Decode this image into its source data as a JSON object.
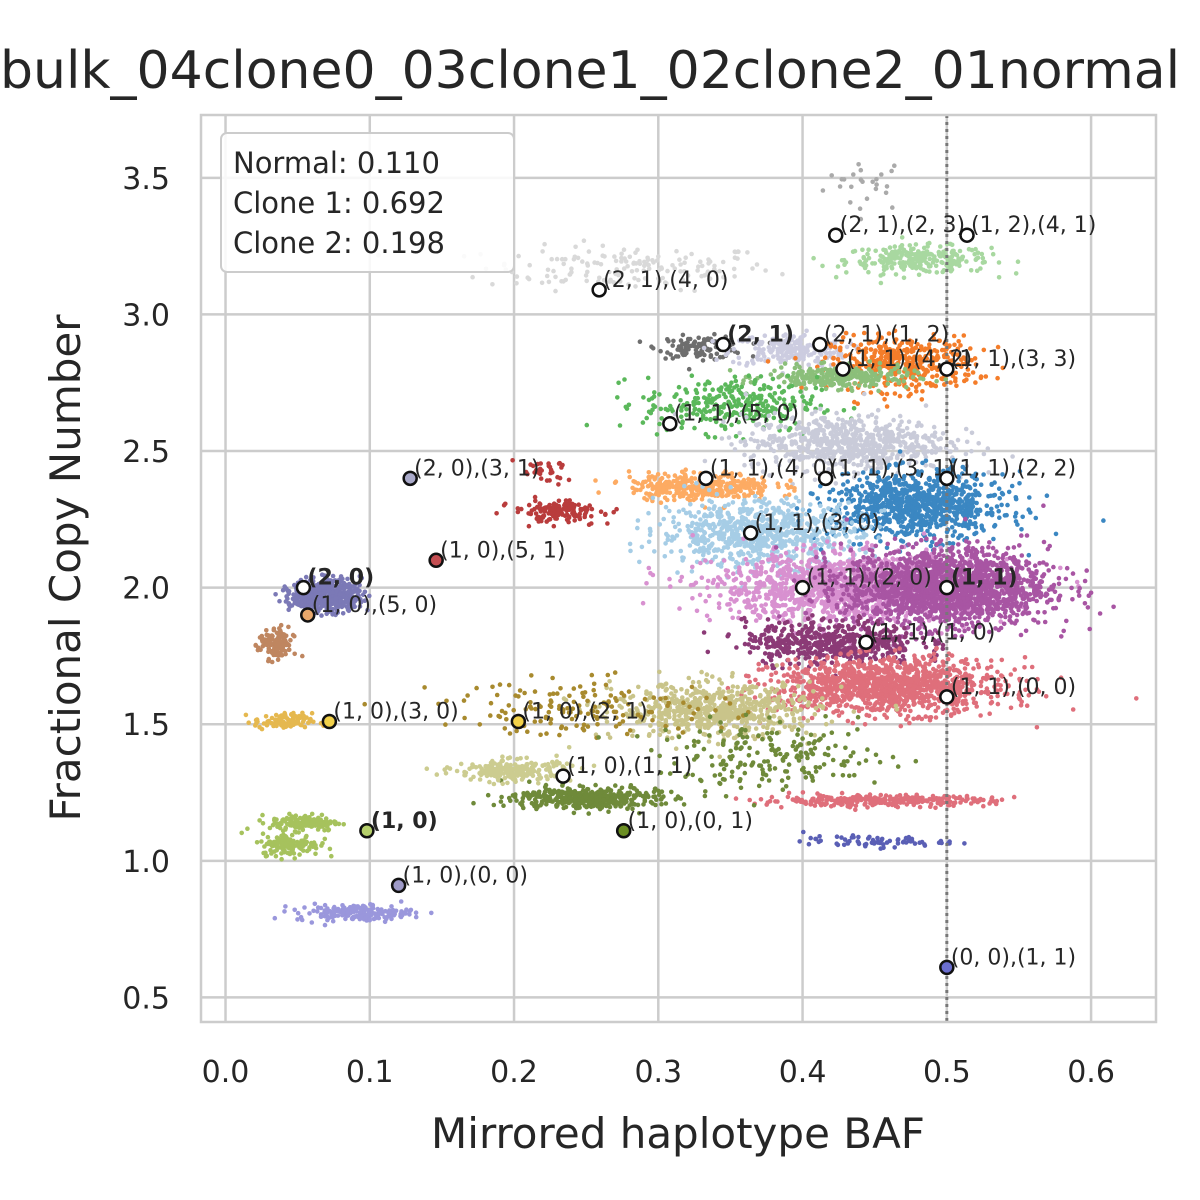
{
  "chart_data": {
    "type": "scatter",
    "title": "bulk_04clone0_03clone1_02clone2_01normal",
    "xlabel": "Mirrored haplotype BAF",
    "ylabel": "Fractional Copy Number",
    "xlim": [
      -0.017,
      0.645
    ],
    "ylim": [
      0.41,
      3.73
    ],
    "x_ticks": [
      "0.0",
      "0.1",
      "0.2",
      "0.3",
      "0.4",
      "0.5",
      "0.6"
    ],
    "y_ticks": [
      "0.5",
      "1.0",
      "1.5",
      "2.0",
      "2.5",
      "3.0",
      "3.5"
    ],
    "grid": true,
    "reference_line": {
      "x": 0.5,
      "style": "dotted",
      "color": "#777777"
    },
    "annotation_box": {
      "position": "top-left",
      "lines": [
        "Normal: 0.110",
        "Clone 1: 0.692",
        "Clone 2: 0.198"
      ]
    },
    "clusters": [
      {
        "color": "#aaaaaa",
        "cx": 0.445,
        "cy": 3.48,
        "sx": 0.015,
        "sy": 0.05,
        "n": 25
      },
      {
        "color": "#d9d9d9",
        "cx": 0.28,
        "cy": 3.17,
        "sx": 0.05,
        "sy": 0.04,
        "n": 160
      },
      {
        "color": "#a8d8a0",
        "cx": 0.48,
        "cy": 3.2,
        "sx": 0.025,
        "sy": 0.025,
        "n": 260
      },
      {
        "color": "#6e6e6e",
        "cx": 0.33,
        "cy": 2.88,
        "sx": 0.015,
        "sy": 0.02,
        "n": 120
      },
      {
        "color": "#cccce0",
        "cx": 0.39,
        "cy": 2.87,
        "sx": 0.02,
        "sy": 0.03,
        "n": 220
      },
      {
        "color": "#f47d2a",
        "cx": 0.47,
        "cy": 2.82,
        "sx": 0.025,
        "sy": 0.05,
        "n": 420
      },
      {
        "color": "#8bbf7a",
        "cx": 0.425,
        "cy": 2.77,
        "sx": 0.025,
        "sy": 0.02,
        "n": 260
      },
      {
        "color": "#5bb85b",
        "cx": 0.35,
        "cy": 2.67,
        "sx": 0.03,
        "sy": 0.05,
        "n": 300
      },
      {
        "color": "#c9cbd9",
        "cx": 0.43,
        "cy": 2.53,
        "sx": 0.035,
        "sy": 0.05,
        "n": 650
      },
      {
        "color": "#fdab63",
        "cx": 0.33,
        "cy": 2.37,
        "sx": 0.025,
        "sy": 0.025,
        "n": 350
      },
      {
        "color": "#3b87c2",
        "cx": 0.48,
        "cy": 2.3,
        "sx": 0.03,
        "sy": 0.06,
        "n": 900
      },
      {
        "color": "#a6cde6",
        "cx": 0.37,
        "cy": 2.2,
        "sx": 0.035,
        "sy": 0.06,
        "n": 750
      },
      {
        "color": "#d891d0",
        "cx": 0.43,
        "cy": 2.0,
        "sx": 0.045,
        "sy": 0.06,
        "n": 1300
      },
      {
        "color": "#a855a3",
        "cx": 0.5,
        "cy": 2.0,
        "sx": 0.035,
        "sy": 0.07,
        "n": 1800
      },
      {
        "color": "#8b3a76",
        "cx": 0.42,
        "cy": 1.8,
        "sx": 0.03,
        "sy": 0.04,
        "n": 500
      },
      {
        "color": "#df6f7b",
        "cx": 0.46,
        "cy": 1.64,
        "sx": 0.04,
        "sy": 0.05,
        "n": 1200
      },
      {
        "color": "#df6f7b",
        "cx": 0.45,
        "cy": 1.22,
        "sx": 0.04,
        "sy": 0.01,
        "n": 300
      },
      {
        "color": "#c9c48a",
        "cx": 0.34,
        "cy": 1.55,
        "sx": 0.035,
        "sy": 0.05,
        "n": 650
      },
      {
        "color": "#a88a2e",
        "cx": 0.25,
        "cy": 1.56,
        "sx": 0.05,
        "sy": 0.05,
        "n": 160
      },
      {
        "color": "#6f8a3a",
        "cx": 0.38,
        "cy": 1.38,
        "sx": 0.04,
        "sy": 0.06,
        "n": 200
      },
      {
        "color": "#6f8a3a",
        "cx": 0.25,
        "cy": 1.23,
        "sx": 0.025,
        "sy": 0.02,
        "n": 420
      },
      {
        "color": "#cccc90",
        "cx": 0.2,
        "cy": 1.33,
        "sx": 0.02,
        "sy": 0.02,
        "n": 220
      },
      {
        "color": "#b93c3c",
        "cx": 0.23,
        "cy": 2.28,
        "sx": 0.015,
        "sy": 0.02,
        "n": 150
      },
      {
        "color": "#b93c3c",
        "cx": 0.22,
        "cy": 2.42,
        "sx": 0.01,
        "sy": 0.02,
        "n": 30
      },
      {
        "color": "#7b79b6",
        "cx": 0.07,
        "cy": 1.97,
        "sx": 0.012,
        "sy": 0.03,
        "n": 500
      },
      {
        "color": "#bf8660",
        "cx": 0.035,
        "cy": 1.79,
        "sx": 0.006,
        "sy": 0.03,
        "n": 120
      },
      {
        "color": "#e5b84f",
        "cx": 0.04,
        "cy": 1.51,
        "sx": 0.01,
        "sy": 0.015,
        "n": 110
      },
      {
        "color": "#a6c25d",
        "cx": 0.055,
        "cy": 1.14,
        "sx": 0.012,
        "sy": 0.015,
        "n": 140
      },
      {
        "color": "#a6c25d",
        "cx": 0.045,
        "cy": 1.06,
        "sx": 0.01,
        "sy": 0.02,
        "n": 140
      },
      {
        "color": "#9a97dc",
        "cx": 0.09,
        "cy": 0.81,
        "sx": 0.02,
        "sy": 0.015,
        "n": 180
      },
      {
        "color": "#5a5fb5",
        "cx": 0.45,
        "cy": 1.07,
        "sx": 0.025,
        "sy": 0.01,
        "n": 70
      }
    ],
    "points": [
      {
        "x": 0.423,
        "y": 3.29,
        "label": "(2, 1),(2, 3)",
        "bold": false,
        "color": "#ffffff"
      },
      {
        "x": 0.514,
        "y": 3.29,
        "label": "(1, 2),(4, 1)",
        "bold": false,
        "color": "#ffffff"
      },
      {
        "x": 0.259,
        "y": 3.09,
        "label": "(2, 1),(4, 0)",
        "bold": false,
        "color": "#ffffff"
      },
      {
        "x": 0.345,
        "y": 2.89,
        "label": "(2, 1)",
        "bold": true,
        "color": "#ffffff"
      },
      {
        "x": 0.412,
        "y": 2.89,
        "label": "(2, 1),(1, 2)",
        "bold": false,
        "color": "#ffffff"
      },
      {
        "x": 0.428,
        "y": 2.8,
        "label": "(1, 1),(4, 2)",
        "bold": false,
        "color": "#ffffff"
      },
      {
        "x": 0.5,
        "y": 2.8,
        "label": "(1, 1),(3, 3)",
        "bold": false,
        "color": "#ffffff"
      },
      {
        "x": 0.308,
        "y": 2.6,
        "label": "(1, 1),(5, 0)",
        "bold": false,
        "color": "#ffffff"
      },
      {
        "x": 0.128,
        "y": 2.4,
        "label": "(2, 0),(3, 1)",
        "bold": false,
        "color": "#aaaaca"
      },
      {
        "x": 0.333,
        "y": 2.4,
        "label": "(1, 1),(4, 0)",
        "bold": false,
        "color": "#ffffff"
      },
      {
        "x": 0.416,
        "y": 2.4,
        "label": "(1, 1),(3, 1)",
        "bold": false,
        "color": "#ffffff"
      },
      {
        "x": 0.5,
        "y": 2.4,
        "label": "(1, 1),(2, 2)",
        "bold": false,
        "color": "#ffffff"
      },
      {
        "x": 0.364,
        "y": 2.2,
        "label": "(1, 1),(3, 0)",
        "bold": false,
        "color": "#ffffff"
      },
      {
        "x": 0.146,
        "y": 2.1,
        "label": "(1, 0),(5, 1)",
        "bold": false,
        "color": "#c44e52"
      },
      {
        "x": 0.054,
        "y": 2.0,
        "label": "(2, 0)",
        "bold": true,
        "color": "#ffffff"
      },
      {
        "x": 0.4,
        "y": 2.0,
        "label": "(1, 1),(2, 0)",
        "bold": false,
        "color": "#ffffff"
      },
      {
        "x": 0.5,
        "y": 2.0,
        "label": "(1, 1)",
        "bold": true,
        "color": "#ffffff"
      },
      {
        "x": 0.057,
        "y": 1.9,
        "label": "(1, 0),(5, 0)",
        "bold": false,
        "color": "#e8a86c"
      },
      {
        "x": 0.444,
        "y": 1.8,
        "label": "(1, 1),(1, 0)",
        "bold": false,
        "color": "#ffffff"
      },
      {
        "x": 0.5,
        "y": 1.6,
        "label": "(1, 1),(0, 0)",
        "bold": false,
        "color": "#ffffff"
      },
      {
        "x": 0.072,
        "y": 1.51,
        "label": "(1, 0),(3, 0)",
        "bold": false,
        "color": "#f2d14a"
      },
      {
        "x": 0.203,
        "y": 1.51,
        "label": "(1, 0),(2, 1)",
        "bold": false,
        "color": "#f2d14a"
      },
      {
        "x": 0.234,
        "y": 1.31,
        "label": "(1, 0),(1, 1)",
        "bold": false,
        "color": "#ffffff"
      },
      {
        "x": 0.098,
        "y": 1.11,
        "label": "(1, 0)",
        "bold": true,
        "color": "#b5cf6b"
      },
      {
        "x": 0.276,
        "y": 1.11,
        "label": "(1, 0),(0, 1)",
        "bold": false,
        "color": "#6b8e23"
      },
      {
        "x": 0.12,
        "y": 0.91,
        "label": "(1, 0),(0, 0)",
        "bold": false,
        "color": "#9e9ac8"
      },
      {
        "x": 0.5,
        "y": 0.61,
        "label": "(0, 0),(1, 1)",
        "bold": false,
        "color": "#6b6ecf"
      }
    ]
  }
}
